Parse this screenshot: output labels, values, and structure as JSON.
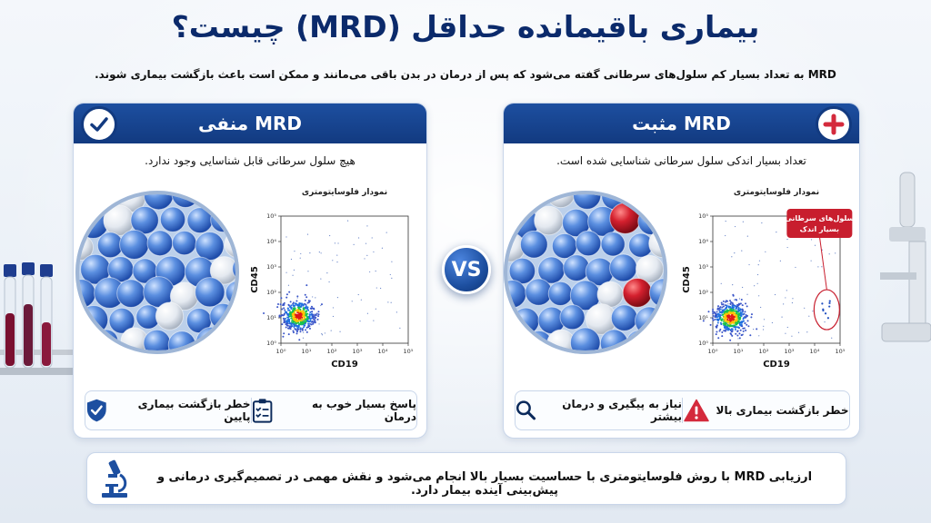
{
  "title": "بیماری باقیمانده حداقل (MRD) چیست؟",
  "subtitle": "MRD به تعداد بسیار کم سلول‌های سرطانی گفته می‌شود که پس از درمان در بدن باقی می‌مانند و ممکن است باعث بازگشت بیماری شوند.",
  "vs_label": "VS",
  "negative": {
    "heading": "MRD منفی",
    "description": "هیچ سلول سرطانی قابل شناسایی وجود ندارد.",
    "chart_title": "نمودار فلوسایتومتری",
    "risk_item": "خطر بازگشت بیماری پایین",
    "response_item": "پاسخ بسیار خوب به درمان",
    "colors": {
      "header": "#123a80",
      "check": "#123a80"
    }
  },
  "positive": {
    "heading": "MRD مثبت",
    "description": "تعداد بسیار اندکی سلول سرطانی شناسایی شده است.",
    "chart_title": "نمودار فلوسایتومتری",
    "callout_line1": "سلول‌های سرطانی",
    "callout_line2": "بسیار اندک",
    "risk_item": "خطر بازگشت بیماری بالا",
    "followup_item": "نیاز به پیگیری و درمان بیشتر",
    "colors": {
      "plus": "#d42a3c",
      "warning": "#d42a3c",
      "callout": "#c81e2e"
    }
  },
  "footer": {
    "text": "ارزیابی MRD با روش فلوسایتومتری با حساسیت بسیار بالا انجام می‌شود و نقش مهمی در تصمیم‌گیری درمانی و پیش‌بینی آینده بیمار دارد.",
    "icon": "microscope-icon"
  },
  "chart_data": [
    {
      "type": "scatter",
      "title": "نمودار فلوسایتومتری",
      "xlabel": "CD19",
      "ylabel": "CD45",
      "x_scale": "log",
      "y_scale": "log",
      "xticks": [
        "10⁰",
        "10¹",
        "10²",
        "10³",
        "10⁴",
        "10⁵"
      ],
      "yticks": [
        "10⁰",
        "10¹",
        "10²",
        "10³",
        "10⁴",
        "10⁵"
      ],
      "xlim": [
        1,
        100000
      ],
      "ylim": [
        1,
        100000
      ],
      "clusters": [
        {
          "center_x": 5,
          "center_y": 12,
          "role": "normal cell population"
        }
      ]
    },
    {
      "type": "scatter",
      "title": "نمودار فلوسایتومتری",
      "xlabel": "CD19",
      "ylabel": "CD45",
      "x_scale": "log",
      "y_scale": "log",
      "xticks": [
        "10⁰",
        "10¹",
        "10²",
        "10³",
        "10⁴",
        "10⁵"
      ],
      "yticks": [
        "10⁰",
        "10¹",
        "10²",
        "10³",
        "10⁴",
        "10⁵"
      ],
      "xlim": [
        1,
        100000
      ],
      "ylim": [
        1,
        100000
      ],
      "clusters": [
        {
          "center_x": 5,
          "center_y": 10,
          "role": "normal cell population"
        },
        {
          "center_x": 30000,
          "center_y": 15,
          "role": "rare cancer cells (highlighted)"
        }
      ]
    }
  ]
}
